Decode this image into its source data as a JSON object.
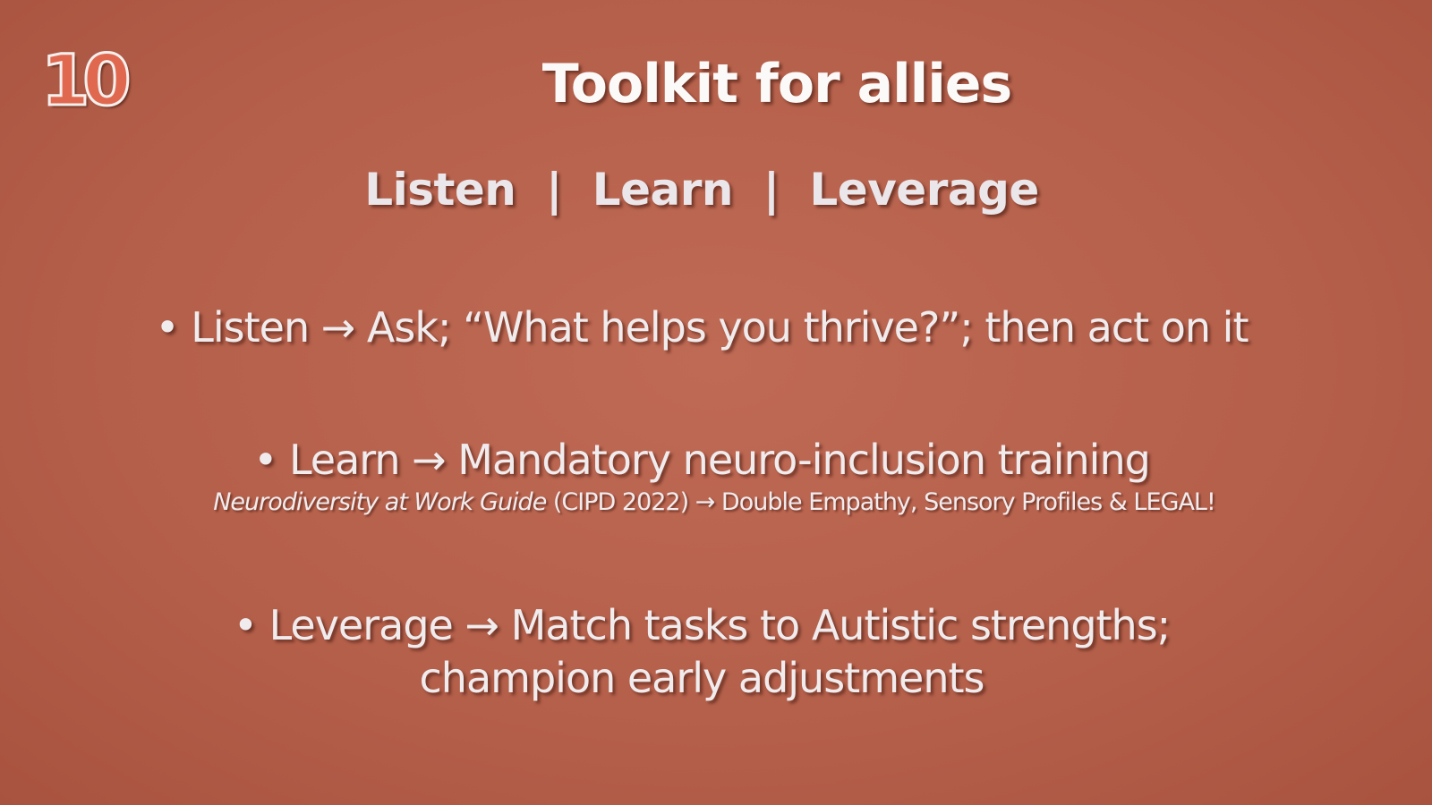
{
  "slide": {
    "number": "10",
    "title": "Toolkit for allies",
    "subtitle": "Listen  |  Learn  |  Leverage",
    "bullets": [
      {
        "marker": "•",
        "text": "Listen → Ask; “What helps you thrive?”; then act on it"
      },
      {
        "marker": "•",
        "text": "Learn → Mandatory neuro-inclusion training",
        "note": {
          "italic": "Neurodiversity at Work Guide",
          "rest": " (CIPD 2022) → Double Empathy, Sensory Profiles & LEGAL!"
        }
      },
      {
        "marker": "•",
        "line1": "Leverage → Match tasks to Autistic strengths;",
        "line2": "champion early adjustments"
      }
    ]
  },
  "colors": {
    "background": "#b9634e",
    "slide_number_fill": "#e0684f",
    "text": "#f0ecee"
  }
}
